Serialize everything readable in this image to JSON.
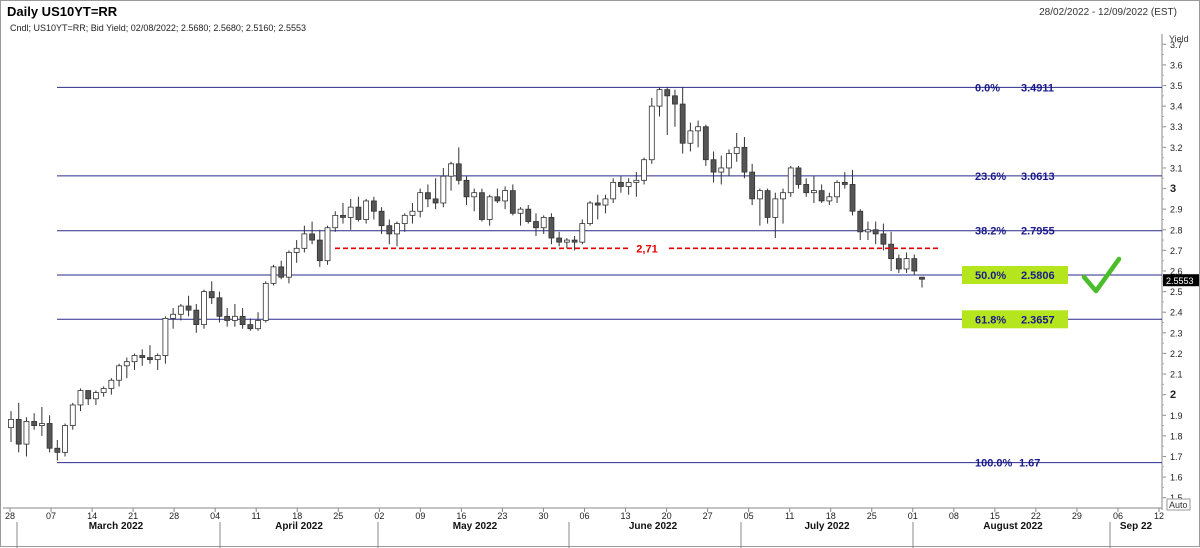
{
  "header": {
    "title": "Daily US10YT=RR",
    "date_range": "28/02/2022 - 12/09/2022 (EST)",
    "legend": "Cndl; US10YT=RR; Bid Yield; 02/08/2022; 2.5680; 2.5680; 2.5160; 2.5553"
  },
  "chart_data": {
    "type": "candlestick",
    "ylabel": "Yield",
    "ylim": [
      1.45,
      3.75
    ],
    "y_ticks": [
      "1.5",
      "1.6",
      "1.7",
      "1.8",
      "1.9",
      "2",
      "2.1",
      "2.2",
      "2.3",
      "2.4",
      "2.5",
      "2.6",
      "2.7",
      "2.8",
      "2.9",
      "3",
      "3.1",
      "3.2",
      "3.3",
      "3.4",
      "3.5",
      "3.6",
      "3.7"
    ],
    "bold_y_ticks": [
      "2",
      "3"
    ],
    "day_ticks": [
      "28",
      "07",
      "14",
      "21",
      "28",
      "04",
      "11",
      "18",
      "25",
      "02",
      "09",
      "16",
      "23",
      "30",
      "06",
      "13",
      "20",
      "27",
      "05",
      "11",
      "18",
      "25",
      "01",
      "08",
      "15",
      "22",
      "29",
      "06",
      "12"
    ],
    "month_labels": [
      "March 2022",
      "April 2022",
      "May 2022",
      "June 2022",
      "July 2022",
      "August 2022",
      "Sep 22"
    ],
    "last_price": "2.5553",
    "auto_label": "Auto",
    "fib_levels": [
      {
        "label": "0.0%",
        "value": "3.4911",
        "level": 3.4911,
        "highlight": false
      },
      {
        "label": "23.6%",
        "value": "3.0613",
        "level": 3.0613,
        "highlight": false
      },
      {
        "label": "38.2%",
        "value": "2.7955",
        "level": 2.7955,
        "highlight": false
      },
      {
        "label": "50.0%",
        "value": "2.5806",
        "level": 2.5806,
        "highlight": true
      },
      {
        "label": "61.8%",
        "value": "2.3657",
        "level": 2.3657,
        "highlight": true
      },
      {
        "label": "100.0%",
        "value": "1.67",
        "level": 1.67,
        "highlight": false
      }
    ],
    "support_line": {
      "label": "2,71",
      "level": 2.71
    },
    "candles": [
      [
        1.84,
        1.92,
        1.77,
        1.88
      ],
      [
        1.88,
        1.96,
        1.72,
        1.76
      ],
      [
        1.76,
        1.89,
        1.7,
        1.87
      ],
      [
        1.87,
        1.91,
        1.83,
        1.85
      ],
      [
        1.85,
        1.94,
        1.8,
        1.86
      ],
      [
        1.86,
        1.9,
        1.72,
        1.74
      ],
      [
        1.74,
        1.78,
        1.68,
        1.72
      ],
      [
        1.72,
        1.86,
        1.7,
        1.85
      ],
      [
        1.85,
        1.96,
        1.83,
        1.95
      ],
      [
        1.95,
        2.03,
        1.92,
        2.02
      ],
      [
        2.02,
        2.02,
        1.95,
        1.98
      ],
      [
        1.98,
        2.02,
        1.95,
        2.01
      ],
      [
        2.01,
        2.04,
        1.99,
        2.03
      ],
      [
        2.03,
        2.08,
        2.0,
        2.07
      ],
      [
        2.07,
        2.15,
        2.04,
        2.14
      ],
      [
        2.14,
        2.18,
        2.08,
        2.16
      ],
      [
        2.16,
        2.2,
        2.12,
        2.19
      ],
      [
        2.19,
        2.22,
        2.14,
        2.18
      ],
      [
        2.18,
        2.24,
        2.15,
        2.17
      ],
      [
        2.17,
        2.2,
        2.12,
        2.19
      ],
      [
        2.19,
        2.38,
        2.15,
        2.37
      ],
      [
        2.37,
        2.42,
        2.32,
        2.39
      ],
      [
        2.39,
        2.44,
        2.36,
        2.43
      ],
      [
        2.43,
        2.48,
        2.38,
        2.41
      ],
      [
        2.41,
        2.44,
        2.3,
        2.34
      ],
      [
        2.34,
        2.51,
        2.32,
        2.5
      ],
      [
        2.5,
        2.55,
        2.44,
        2.47
      ],
      [
        2.47,
        2.5,
        2.35,
        2.38
      ],
      [
        2.38,
        2.42,
        2.33,
        2.36
      ],
      [
        2.36,
        2.44,
        2.33,
        2.38
      ],
      [
        2.38,
        2.42,
        2.32,
        2.34
      ],
      [
        2.34,
        2.37,
        2.31,
        2.32
      ],
      [
        2.32,
        2.4,
        2.31,
        2.36
      ],
      [
        2.36,
        2.55,
        2.35,
        2.54
      ],
      [
        2.54,
        2.63,
        2.53,
        2.62
      ],
      [
        2.62,
        2.65,
        2.56,
        2.57
      ],
      [
        2.57,
        2.7,
        2.54,
        2.69
      ],
      [
        2.69,
        2.75,
        2.64,
        2.71
      ],
      [
        2.71,
        2.82,
        2.69,
        2.78
      ],
      [
        2.78,
        2.84,
        2.73,
        2.75
      ],
      [
        2.75,
        2.8,
        2.62,
        2.65
      ],
      [
        2.65,
        2.82,
        2.63,
        2.81
      ],
      [
        2.81,
        2.89,
        2.79,
        2.87
      ],
      [
        2.87,
        2.93,
        2.83,
        2.86
      ],
      [
        2.86,
        2.95,
        2.8,
        2.91
      ],
      [
        2.91,
        2.96,
        2.84,
        2.85
      ],
      [
        2.85,
        2.95,
        2.83,
        2.94
      ],
      [
        2.94,
        2.96,
        2.85,
        2.89
      ],
      [
        2.89,
        2.91,
        2.78,
        2.82
      ],
      [
        2.82,
        2.85,
        2.73,
        2.78
      ],
      [
        2.78,
        2.84,
        2.72,
        2.83
      ],
      [
        2.83,
        2.88,
        2.79,
        2.87
      ],
      [
        2.87,
        2.93,
        2.83,
        2.89
      ],
      [
        2.89,
        3.0,
        2.86,
        2.98
      ],
      [
        2.98,
        3.02,
        2.91,
        2.95
      ],
      [
        2.95,
        3.05,
        2.9,
        2.93
      ],
      [
        2.93,
        3.1,
        2.91,
        3.06
      ],
      [
        3.06,
        3.13,
        2.99,
        3.12
      ],
      [
        3.12,
        3.2,
        3.02,
        3.04
      ],
      [
        3.04,
        3.06,
        2.92,
        2.96
      ],
      [
        2.96,
        3.0,
        2.89,
        2.98
      ],
      [
        2.98,
        3.0,
        2.84,
        2.85
      ],
      [
        2.85,
        2.97,
        2.82,
        2.96
      ],
      [
        2.96,
        3.0,
        2.93,
        2.94
      ],
      [
        2.94,
        3.01,
        2.9,
        2.99
      ],
      [
        2.99,
        3.02,
        2.87,
        2.88
      ],
      [
        2.88,
        2.91,
        2.82,
        2.9
      ],
      [
        2.9,
        2.92,
        2.83,
        2.84
      ],
      [
        2.84,
        2.88,
        2.77,
        2.81
      ],
      [
        2.81,
        2.87,
        2.78,
        2.86
      ],
      [
        2.86,
        2.88,
        2.73,
        2.76
      ],
      [
        2.76,
        2.79,
        2.72,
        2.74
      ],
      [
        2.74,
        2.76,
        2.71,
        2.75
      ],
      [
        2.75,
        2.77,
        2.7,
        2.74
      ],
      [
        2.74,
        2.85,
        2.73,
        2.83
      ],
      [
        2.83,
        2.94,
        2.82,
        2.93
      ],
      [
        2.93,
        2.97,
        2.85,
        2.92
      ],
      [
        2.92,
        2.97,
        2.88,
        2.95
      ],
      [
        2.95,
        3.05,
        2.93,
        3.03
      ],
      [
        3.03,
        3.06,
        2.98,
        3.01
      ],
      [
        3.01,
        3.05,
        2.97,
        3.03
      ],
      [
        3.03,
        3.08,
        2.96,
        3.04
      ],
      [
        3.04,
        3.15,
        3.02,
        3.14
      ],
      [
        3.14,
        3.44,
        3.12,
        3.4
      ],
      [
        3.4,
        3.49,
        3.35,
        3.48
      ],
      [
        3.48,
        3.49,
        3.26,
        3.45
      ],
      [
        3.45,
        3.48,
        3.3,
        3.41
      ],
      [
        3.41,
        3.49,
        3.17,
        3.22
      ],
      [
        3.22,
        3.32,
        3.18,
        3.28
      ],
      [
        3.28,
        3.33,
        3.2,
        3.3
      ],
      [
        3.3,
        3.31,
        3.11,
        3.14
      ],
      [
        3.14,
        3.18,
        3.03,
        3.08
      ],
      [
        3.08,
        3.16,
        3.02,
        3.1
      ],
      [
        3.1,
        3.19,
        3.06,
        3.17
      ],
      [
        3.17,
        3.27,
        3.13,
        3.2
      ],
      [
        3.2,
        3.25,
        3.05,
        3.08
      ],
      [
        3.08,
        3.12,
        2.92,
        2.95
      ],
      [
        2.95,
        3.0,
        2.82,
        2.99
      ],
      [
        2.99,
        3.0,
        2.83,
        2.86
      ],
      [
        2.86,
        2.98,
        2.76,
        2.95
      ],
      [
        2.95,
        3.0,
        2.83,
        2.98
      ],
      [
        2.98,
        3.11,
        2.96,
        3.1
      ],
      [
        3.1,
        3.11,
        3.0,
        3.02
      ],
      [
        3.02,
        3.05,
        2.96,
        2.98
      ],
      [
        2.98,
        3.06,
        2.93,
        2.99
      ],
      [
        2.99,
        3.02,
        2.93,
        2.94
      ],
      [
        2.94,
        2.98,
        2.92,
        2.96
      ],
      [
        2.96,
        3.04,
        2.93,
        3.03
      ],
      [
        3.03,
        3.08,
        3.0,
        3.02
      ],
      [
        3.02,
        3.09,
        2.87,
        2.89
      ],
      [
        2.89,
        2.9,
        2.75,
        2.79
      ],
      [
        2.79,
        2.84,
        2.75,
        2.8
      ],
      [
        2.8,
        2.84,
        2.73,
        2.78
      ],
      [
        2.78,
        2.83,
        2.7,
        2.73
      ],
      [
        2.73,
        2.79,
        2.6,
        2.66
      ],
      [
        2.66,
        2.68,
        2.59,
        2.61
      ],
      [
        2.61,
        2.69,
        2.59,
        2.66
      ],
      [
        2.66,
        2.68,
        2.58,
        2.6
      ],
      [
        2.57,
        2.57,
        2.52,
        2.56
      ]
    ]
  }
}
